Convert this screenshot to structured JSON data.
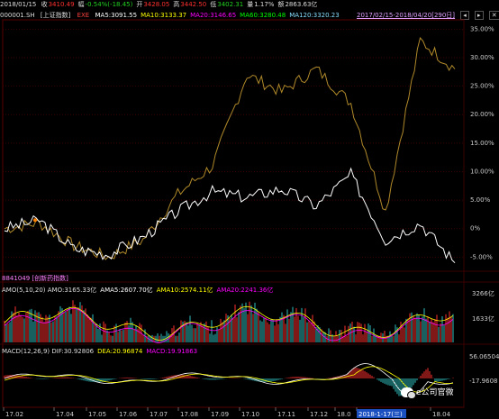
{
  "topbar": {
    "date": "2018/01/15",
    "items": [
      {
        "label": "收",
        "value": "3410.49",
        "color": "#ff3030"
      },
      {
        "label": "幅",
        "value": "-0.54%(-18.45)",
        "color": "#20d020"
      },
      {
        "label": "开",
        "value": "3428.05",
        "color": "#ff3030"
      },
      {
        "label": "高",
        "value": "3442.50",
        "color": "#ff3030"
      },
      {
        "label": "低",
        "value": "3402.31",
        "color": "#20d020"
      },
      {
        "label": "量",
        "value": "1.17%",
        "color": "#dddddd"
      },
      {
        "label": "额",
        "value": "2863.63亿",
        "color": "#dddddd"
      }
    ]
  },
  "infobar": {
    "code": "000001.SH",
    "name": "[上证指数]",
    "ma_btn": "EXE",
    "ma": [
      {
        "text": "MA5:3091.55",
        "color": "#ffffff"
      },
      {
        "text": "MA10:3133.37",
        "color": "#ffff00"
      },
      {
        "text": "MA20:3146.65",
        "color": "#ff00ff"
      },
      {
        "text": "MA60:3280.48",
        "color": "#00ff00"
      },
      {
        "text": "MA120:3320.23",
        "color": "#88ddff"
      }
    ],
    "range": "2017/02/15-2018/04/20[290日]",
    "nav": [
      "◂",
      "▸",
      "✕"
    ]
  },
  "main_axis": {
    "labels": [
      "35.00%",
      "30.00%",
      "25.00%",
      "20.00%",
      "15.00%",
      "10.00%",
      "5.00%",
      "0%",
      "-5.00%"
    ]
  },
  "compare_label": "8841049 [创新药指数]",
  "amo": {
    "params": "AMO(5,10,20)",
    "items": [
      {
        "text": "AMO:3165.33亿",
        "color": "#dddddd"
      },
      {
        "text": "AMA5:2607.70亿",
        "color": "#ffffff"
      },
      {
        "text": "AMA10:2574.11亿",
        "color": "#ffff00"
      },
      {
        "text": "AMA20:2241.36亿",
        "color": "#ff00ff"
      }
    ],
    "axis": [
      "3266亿",
      "1633亿"
    ]
  },
  "macd": {
    "params": "MACD(12,26,9)",
    "items": [
      {
        "text": "DIF:30.92806",
        "color": "#dddddd"
      },
      {
        "text": "DEA:20.96874",
        "color": "#ffff00"
      },
      {
        "text": "MACD:19.91863",
        "color": "#ff00ff"
      }
    ],
    "axis": [
      "56.06504",
      "-17.9608"
    ]
  },
  "xaxis": {
    "labels": [
      "17.02",
      "17.04",
      "17.05",
      "17.06",
      "17.07",
      "17.08",
      "17.09",
      "17.10",
      "17.11",
      "17.12",
      "18.0",
      "2018-1-17(三)",
      "18.04"
    ],
    "highlight": "2018-1-17(三)"
  },
  "watermark": "e公司官微",
  "chart_data": {
    "type": "line",
    "series": [
      {
        "name": "上证指数",
        "x": [
          "17.02",
          "17.04",
          "17.05",
          "17.06",
          "17.07",
          "17.08",
          "17.09",
          "17.10",
          "17.11",
          "17.12",
          "18.01",
          "18.02",
          "18.03",
          "18.04"
        ],
        "values": [
          0,
          1.5,
          -3.5,
          -4.5,
          -1.5,
          3,
          6.5,
          5.5,
          7,
          4,
          9.5,
          -2,
          1,
          -6
        ]
      },
      {
        "name": "创新药指数",
        "x": [
          "17.02",
          "17.04",
          "17.05",
          "17.06",
          "17.07",
          "17.08",
          "17.09",
          "17.10",
          "17.11",
          "17.12",
          "18.01",
          "18.02",
          "18.03",
          "18.04"
        ],
        "values": [
          0,
          1,
          -3,
          -5,
          -2,
          6,
          11,
          27,
          24,
          28,
          22,
          3,
          33,
          28
        ]
      }
    ],
    "ylim": [
      -7,
      36
    ],
    "colors": {
      "primary": "#ffffff",
      "compare": "#b08a2a",
      "volume_up": "#ff3030",
      "volume_down": "#30c0c0"
    }
  }
}
